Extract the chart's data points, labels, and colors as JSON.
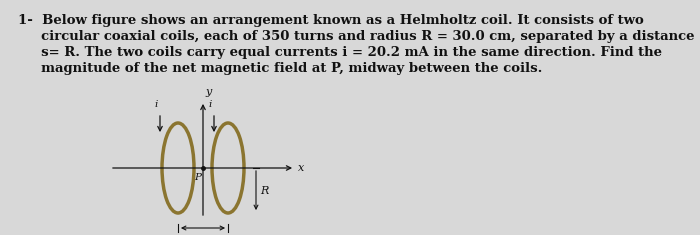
{
  "background_color": "#d8d8d8",
  "text_color": "#111111",
  "coil_color": "#8B7530",
  "coil_linewidth": 2.5,
  "axis_color": "#111111",
  "line1": "1-  Below figure shows an arrangement known as a Helmholtz coil. It consists of two",
  "line2": "     circular coaxial coils, each of 350 turns and radius R = 30.0 cm, separated by a distance",
  "line3": "     s= R. The two coils carry equal currents i = 20.2 mA in the same direction. Find the",
  "line4": "     magnitude of the net magnetic field at P, midway between the coils.",
  "font_size_question": 9.5,
  "fig_width": 7.0,
  "fig_height": 2.35,
  "dpi": 100
}
